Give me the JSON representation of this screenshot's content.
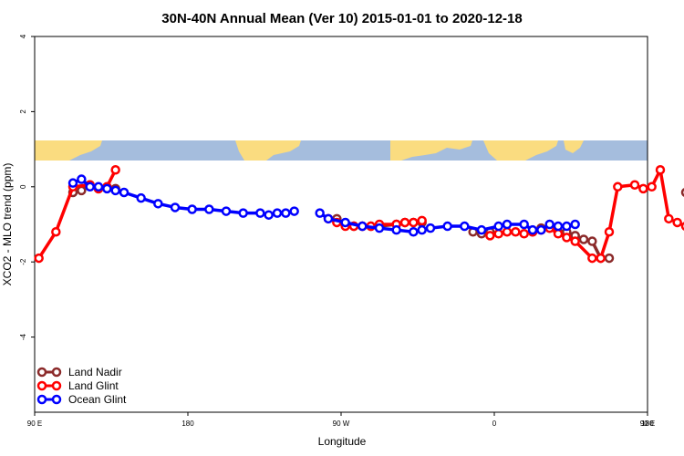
{
  "chart_data": {
    "type": "line",
    "title": "30N-40N Annual Mean (Ver 10)   2015-01-01 to 2020-12-18",
    "xlabel": "Longitude",
    "ylabel": "XCO2 - MLO trend (ppm)",
    "xlim": [
      90,
      450
    ],
    "ylim": [
      -6,
      4
    ],
    "x_ticks": [
      {
        "value": 90,
        "label": "90 E"
      },
      {
        "value": 180,
        "label": "180"
      },
      {
        "value": 270,
        "label": "90 W"
      },
      {
        "value": 360,
        "label": "0"
      },
      {
        "value": 450,
        "label": "90 E"
      },
      {
        "value": 540,
        "label": "180"
      }
    ],
    "y_ticks": [
      {
        "value": 4,
        "label": "4"
      },
      {
        "value": 2,
        "label": "2"
      },
      {
        "value": 0,
        "label": "0"
      },
      {
        "value": -2,
        "label": "-2"
      },
      {
        "value": -4,
        "label": "-4"
      }
    ],
    "legend_position": "bottom-left",
    "series": [
      {
        "name": "Land Nadir",
        "color": "#8b2a2a",
        "x": [
          112.5,
          117.5,
          122.5,
          127.5,
          132.5,
          137.5,
          267.5,
          272.5,
          277.5,
          282.5,
          287.5,
          292.5,
          302.5,
          307.5,
          312.5,
          317.5,
          347.5,
          352.5,
          357.5,
          382.5,
          387.5,
          392.5,
          402.5,
          407.5,
          412.5,
          417.5,
          422.5,
          427.5,
          472.5,
          477.5,
          482.5,
          487.5,
          492.5,
          497.5
        ],
        "y": [
          -0.15,
          -0.1,
          0.05,
          -0.05,
          -0.02,
          -0.05,
          -0.85,
          -1.0,
          -1.05,
          -1.05,
          -1.05,
          -1.05,
          -1.0,
          -0.95,
          -0.95,
          -0.95,
          -1.2,
          -1.25,
          -1.2,
          -1.2,
          -1.1,
          -1.1,
          -1.2,
          -1.3,
          -1.4,
          -1.45,
          -1.9,
          -1.9,
          -0.15,
          -0.1,
          0.05,
          -0.05,
          -0.02,
          -0.05
        ]
      },
      {
        "name": "Land Glint",
        "color": "#ff0000",
        "x": [
          92.5,
          102.5,
          112.5,
          122.5,
          127.5,
          132.5,
          137.5,
          262.5,
          267.5,
          272.5,
          277.5,
          282.5,
          287.5,
          292.5,
          302.5,
          307.5,
          312.5,
          317.5,
          357.5,
          362.5,
          367.5,
          372.5,
          377.5,
          382.5,
          387.5,
          392.5,
          397.5,
          402.5,
          407.5,
          417.5,
          422.5,
          427.5,
          432.5,
          442.5,
          447.5,
          452.5,
          457.5,
          462.5,
          467.5,
          472.5,
          477.5
        ],
        "y": [
          -1.9,
          -1.2,
          0.0,
          0.05,
          -0.05,
          0.0,
          0.45,
          -0.85,
          -0.95,
          -1.05,
          -1.05,
          -1.05,
          -1.05,
          -1.0,
          -1.0,
          -0.95,
          -0.95,
          -0.9,
          -1.3,
          -1.25,
          -1.2,
          -1.2,
          -1.25,
          -1.2,
          -1.15,
          -1.1,
          -1.25,
          -1.35,
          -1.45,
          -1.9,
          -1.9,
          -1.2,
          0.0,
          0.05,
          -0.05,
          0.0,
          0.45,
          -0.85,
          -0.95,
          -1.05,
          -1.05
        ]
      },
      {
        "name": "Ocean Glint",
        "color": "#0000ff",
        "x": [
          112.5,
          117.5,
          122.5,
          127.5,
          132.5,
          137.5,
          142.5,
          152.5,
          162.5,
          172.5,
          182.5,
          192.5,
          202.5,
          212.5,
          222.5,
          227.5,
          232.5,
          237.5,
          242.5,
          257.5,
          262.5,
          272.5,
          282.5,
          292.5,
          302.5,
          312.5,
          317.5,
          322.5,
          332.5,
          342.5,
          352.5,
          362.5,
          367.5,
          377.5,
          382.5,
          387.5,
          392.5,
          397.5,
          402.5,
          407.5
        ],
        "y": [
          0.1,
          0.2,
          0.0,
          0.0,
          -0.05,
          -0.1,
          -0.15,
          -0.3,
          -0.45,
          -0.55,
          -0.6,
          -0.6,
          -0.65,
          -0.7,
          -0.7,
          -0.75,
          -0.7,
          -0.7,
          -0.65,
          -0.7,
          -0.85,
          -0.95,
          -1.05,
          -1.1,
          -1.15,
          -1.2,
          -1.15,
          -1.1,
          -1.05,
          -1.05,
          -1.15,
          -1.05,
          -1.0,
          -1.0,
          -1.15,
          -1.15,
          -1.0,
          -1.05,
          -1.05,
          -1.0
        ]
      }
    ]
  }
}
